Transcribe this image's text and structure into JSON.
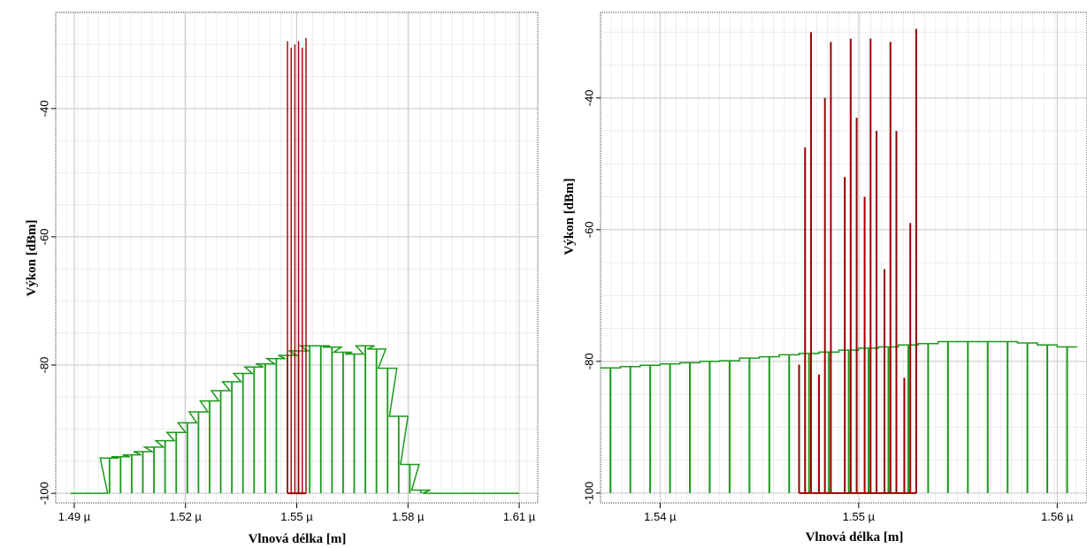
{
  "chart_data": [
    {
      "type": "bar",
      "xlabel": "Vlnová délka [m]",
      "ylabel": "Výkon [dBm]",
      "xlim": [
        1.485,
        1.615
      ],
      "ylim": [
        -101.5,
        -25
      ],
      "x_ticks": [
        {
          "value": 1.49,
          "label": "1.49 µ"
        },
        {
          "value": 1.52,
          "label": "1.52 µ"
        },
        {
          "value": 1.55,
          "label": "1.55 µ"
        },
        {
          "value": 1.58,
          "label": "1.58 µ"
        },
        {
          "value": 1.61,
          "label": "1.61 µ"
        }
      ],
      "y_ticks": [
        {
          "value": -40,
          "label": "-40"
        },
        {
          "value": -60,
          "label": "-60"
        },
        {
          "value": -80,
          "label": "-80"
        },
        {
          "value": -100,
          "label": "-100"
        }
      ],
      "grid": true,
      "colors": {
        "green": "#1a9a1a",
        "red": "#990000"
      },
      "series": [
        {
          "color": "#1a9a1a",
          "baseline": -100,
          "x": [
            1.4915,
            1.4965,
            1.4995,
            1.5025,
            1.5055,
            1.5085,
            1.5115,
            1.5145,
            1.5175,
            1.5205,
            1.5235,
            1.5265,
            1.5295,
            1.5325,
            1.5355,
            1.5385,
            1.5415,
            1.5445,
            1.5475,
            1.5505,
            1.5535,
            1.5565,
            1.5595,
            1.5625,
            1.5655,
            1.5685,
            1.5715,
            1.5745,
            1.5775,
            1.5805,
            1.5835,
            1.5865,
            1.5895,
            1.5925,
            1.5955,
            1.5985,
            1.6015,
            1.6045,
            1.6075
          ],
          "y": [
            -100,
            -100,
            -94.5,
            -94.3,
            -94.0,
            -93.5,
            -92.8,
            -91.8,
            -90.5,
            -89.0,
            -87.3,
            -85.6,
            -84.0,
            -82.6,
            -81.3,
            -80.3,
            -79.8,
            -79.0,
            -78.5,
            -77.8,
            -77.0,
            -77.0,
            -77.2,
            -78.0,
            -78.3,
            -77.0,
            -77.5,
            -80.5,
            -88.0,
            -95.5,
            -99.5,
            -100,
            -100,
            -100,
            -100,
            -100,
            -100,
            -100,
            -100
          ]
        },
        {
          "color": "#990000",
          "baseline": -100,
          "x": [
            1.5475,
            1.5485,
            1.5495,
            1.5505,
            1.5515,
            1.5525
          ],
          "y": [
            -29.5,
            -30.5,
            -30.0,
            -29.5,
            -30.5,
            -29.0
          ]
        }
      ]
    },
    {
      "type": "bar",
      "xlabel": "Vlnová délka [m]",
      "ylabel": "Výkon [dBm]",
      "xlim": [
        1.537,
        1.5615
      ],
      "ylim": [
        -101.5,
        -27
      ],
      "x_ticks": [
        {
          "value": 1.54,
          "label": "1.54 µ"
        },
        {
          "value": 1.55,
          "label": "1.55 µ"
        },
        {
          "value": 1.56,
          "label": "1.56 µ"
        }
      ],
      "y_ticks": [
        {
          "value": -40,
          "label": "-40"
        },
        {
          "value": -60,
          "label": "-60"
        },
        {
          "value": -80,
          "label": "-80"
        },
        {
          "value": -100,
          "label": "-100"
        }
      ],
      "grid": true,
      "colors": {
        "green": "#1a9a1a",
        "red": "#990000"
      },
      "series": [
        {
          "color": "#1a9a1a",
          "baseline": -100,
          "x": [
            1.5375,
            1.5385,
            1.5395,
            1.5405,
            1.5415,
            1.5425,
            1.5435,
            1.5445,
            1.5455,
            1.5465,
            1.5475,
            1.5485,
            1.5495,
            1.5505,
            1.5515,
            1.5525,
            1.5535,
            1.5545,
            1.5555,
            1.5565,
            1.5575,
            1.5585,
            1.5595,
            1.5605
          ],
          "y": [
            -81.0,
            -80.8,
            -80.6,
            -80.4,
            -80.2,
            -80.0,
            -79.9,
            -79.5,
            -79.3,
            -79.0,
            -78.8,
            -78.6,
            -78.3,
            -78.0,
            -77.8,
            -77.5,
            -77.3,
            -77.0,
            -77.0,
            -77.0,
            -77.0,
            -77.2,
            -77.5,
            -77.8
          ]
        },
        {
          "color": "#990000",
          "baseline": -100,
          "x": [
            1.547,
            1.5473,
            1.5476,
            1.548,
            1.5483,
            1.5486,
            1.5493,
            1.5496,
            1.5499,
            1.5503,
            1.5506,
            1.5509,
            1.5513,
            1.5516,
            1.5519,
            1.5523,
            1.5526,
            1.5529
          ],
          "y": [
            -80.5,
            -47.5,
            -30.0,
            -82.0,
            -40.0,
            -31.5,
            -52.0,
            -31.0,
            -43.0,
            -55.0,
            -31.0,
            -45.0,
            -66.0,
            -31.5,
            -45.0,
            -82.5,
            -59.0,
            -29.5
          ]
        }
      ]
    }
  ]
}
